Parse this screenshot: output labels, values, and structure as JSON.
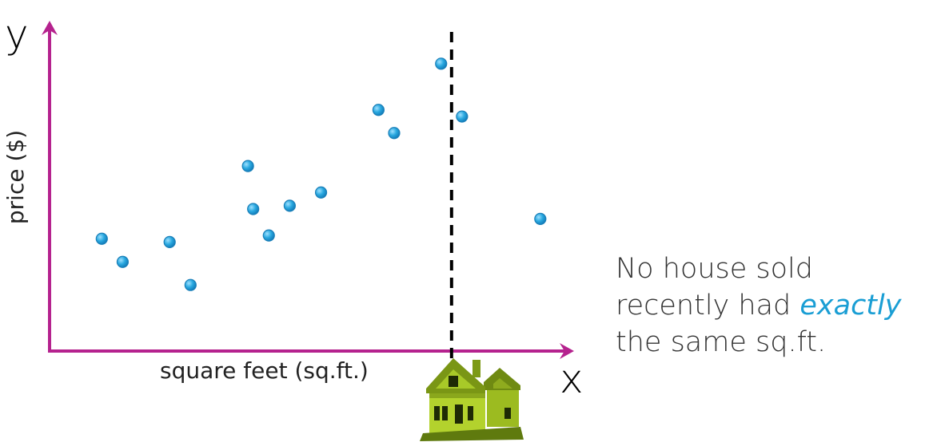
{
  "chart_data": {
    "type": "scatter",
    "ylabel": "price ($)",
    "xlabel": "square feet (sq.ft.)",
    "x_axis_letter": "x",
    "y_axis_letter": "y",
    "points": [
      {
        "x": 0.1,
        "y": 0.34
      },
      {
        "x": 0.14,
        "y": 0.27
      },
      {
        "x": 0.23,
        "y": 0.33
      },
      {
        "x": 0.27,
        "y": 0.2
      },
      {
        "x": 0.38,
        "y": 0.56
      },
      {
        "x": 0.39,
        "y": 0.43
      },
      {
        "x": 0.42,
        "y": 0.35
      },
      {
        "x": 0.46,
        "y": 0.44
      },
      {
        "x": 0.52,
        "y": 0.48
      },
      {
        "x": 0.63,
        "y": 0.73
      },
      {
        "x": 0.66,
        "y": 0.66
      },
      {
        "x": 0.75,
        "y": 0.87
      },
      {
        "x": 0.79,
        "y": 0.71
      },
      {
        "x": 0.94,
        "y": 0.4
      }
    ],
    "xlim": [
      0,
      1
    ],
    "ylim": [
      0,
      1
    ],
    "query_x": 0.77,
    "grid": false,
    "colors": {
      "axes": "#b5228e",
      "points": "#2aa9e0",
      "point_edge": "#1a7fb8",
      "query_line": "#000000",
      "highlight_text": "#1a9ed4"
    }
  },
  "annotation": {
    "line1": "No house sold",
    "line2_start": "recently had ",
    "line2_em": "exactly",
    "line3": "the same sq.ft."
  },
  "icons": {
    "house": "house-icon"
  }
}
